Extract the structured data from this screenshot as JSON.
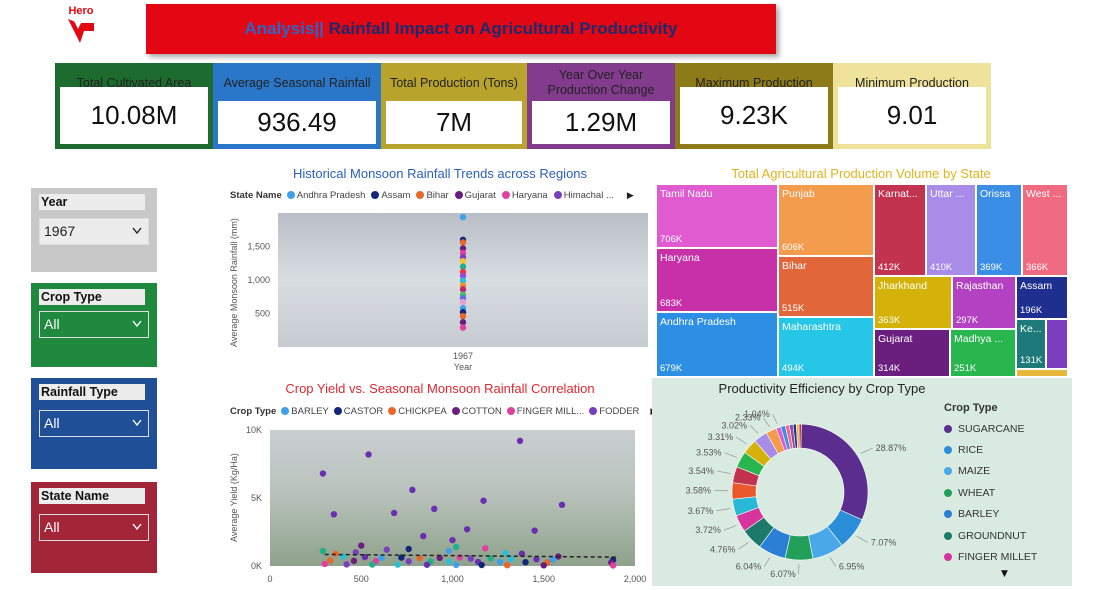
{
  "header": {
    "brand": "Hero",
    "title_prefix": "Analysis||",
    "title_main": " Rainfall Impact on Agricultural Productivity"
  },
  "kpis": [
    {
      "label": "Total Cultivated Area",
      "value": "10.08M",
      "color": "#1e6b2f"
    },
    {
      "label": "Average Seasonal Rainfall",
      "value": "936.49",
      "color": "#2a77c9"
    },
    {
      "label": "Total Production (Tons)",
      "value": "7M",
      "color": "#b8a32c"
    },
    {
      "label": "Year Over Year Production Change",
      "value": "1.29M",
      "color": "#833b8e"
    },
    {
      "label": "Maximum Production",
      "value": "9.23K",
      "color": "#8d7a18"
    },
    {
      "label": "Minimum Production",
      "value": "9.01",
      "color": "#efe39b"
    }
  ],
  "slicers": [
    {
      "label": "Year",
      "value": "1967",
      "color": "#c8c8c8"
    },
    {
      "label": "Crop Type",
      "value": "All",
      "color": "#1f8a3e"
    },
    {
      "label": "Rainfall Type",
      "value": "All",
      "color": "#1f4f96"
    },
    {
      "label": "State Name",
      "value": "All",
      "color": "#a32538"
    }
  ],
  "rainfall_chart": {
    "title": "Historical Monsoon Rainfall Trends across Regions",
    "legend_title": "State Name",
    "legend": [
      "Andhra Pradesh",
      "Assam",
      "Bihar",
      "Gujarat",
      "Haryana",
      "Himachal ..."
    ],
    "legend_colors": [
      "#3fa0e8",
      "#14267a",
      "#e8672a",
      "#6a1f7e",
      "#e0409e",
      "#7a3fbf"
    ],
    "ylabel": "Average Monsoon Rainfall (mm)",
    "xlabel": "Year",
    "yticks": [
      "1,500",
      "1,000",
      "500"
    ],
    "xtick": "1967"
  },
  "yield_chart": {
    "title": "Crop Yield vs. Seasonal Monsoon Rainfall Correlation",
    "legend_title": "Crop Type",
    "legend": [
      "BARLEY",
      "CASTOR",
      "CHICKPEA",
      "COTTON",
      "FINGER MILL...",
      "FODDER"
    ],
    "legend_colors": [
      "#3fa0e8",
      "#14267a",
      "#e8672a",
      "#6a1f7e",
      "#e0409e",
      "#7a3fbf"
    ],
    "ylabel": "Average Yield (Kg/Ha)",
    "yticks": [
      "10K",
      "5K",
      "0K"
    ],
    "xticks": [
      "0",
      "500",
      "1,000",
      "1,500",
      "2,000"
    ]
  },
  "treemap": {
    "title": "Total Agricultural Production Volume by State",
    "title_color": "#e0b41e"
  },
  "donut": {
    "title": "Productivity Efficiency by Crop Type",
    "legend_title": "Crop Type",
    "legend": [
      {
        "name": "SUGARCANE",
        "color": "#5b2d8e"
      },
      {
        "name": "RICE",
        "color": "#2a8fd8"
      },
      {
        "name": "MAIZE",
        "color": "#4aa8e8"
      },
      {
        "name": "WHEAT",
        "color": "#22a05a"
      },
      {
        "name": "BARLEY",
        "color": "#2a7fd4"
      },
      {
        "name": "GROUNDNUT",
        "color": "#1d7a6a"
      },
      {
        "name": "FINGER MILLET",
        "color": "#d8349e"
      }
    ]
  },
  "chart_data": [
    {
      "type": "scatter",
      "title": "Historical Monsoon Rainfall Trends across Regions",
      "xlabel": "Year",
      "ylabel": "Average Monsoon Rainfall (mm)",
      "x_category": "1967",
      "ylim": [
        0,
        2000
      ],
      "series_colors": [
        "#3fa0e8",
        "#14267a",
        "#e8672a",
        "#6a1f7e",
        "#e0409e",
        "#7a3fbf",
        "#f2c530",
        "#22b08a",
        "#e33a3a",
        "#9a4ad6",
        "#2abfd6",
        "#f08a2a",
        "#c0286e",
        "#44c05a",
        "#6a6ae0",
        "#e8a0c8"
      ],
      "values": [
        1940,
        1600,
        1560,
        1470,
        1400,
        1340,
        1280,
        1200,
        1120,
        1060,
        990,
        920,
        860,
        780,
        730,
        670,
        580,
        520,
        460,
        370,
        290
      ]
    },
    {
      "type": "scatter",
      "title": "Crop Yield vs. Seasonal Monsoon Rainfall Correlation",
      "ylabel": "Average Yield (Kg/Ha)",
      "xlim": [
        0,
        2000
      ],
      "ylim": [
        0,
        10000
      ],
      "points": [
        [
          290,
          6800
        ],
        [
          540,
          8200
        ],
        [
          1370,
          9200
        ],
        [
          780,
          5600
        ],
        [
          1170,
          4800
        ],
        [
          1600,
          4500
        ],
        [
          900,
          4200
        ],
        [
          350,
          3800
        ],
        [
          680,
          3900
        ],
        [
          1450,
          2600
        ],
        [
          1080,
          2700
        ],
        [
          840,
          2200
        ],
        [
          1000,
          1900
        ],
        [
          500,
          1500
        ],
        [
          1180,
          1300
        ],
        [
          640,
          1200
        ],
        [
          290,
          1100
        ],
        [
          400,
          700
        ],
        [
          520,
          650
        ],
        [
          610,
          600
        ],
        [
          720,
          620
        ],
        [
          820,
          580
        ],
        [
          930,
          600
        ],
        [
          1040,
          630
        ],
        [
          1100,
          540
        ],
        [
          1210,
          560
        ],
        [
          1320,
          520
        ],
        [
          1460,
          500
        ],
        [
          1550,
          480
        ],
        [
          1880,
          450
        ],
        [
          330,
          400
        ],
        [
          460,
          380
        ],
        [
          580,
          360
        ],
        [
          760,
          340
        ],
        [
          880,
          330
        ],
        [
          980,
          310
        ],
        [
          1140,
          300
        ],
        [
          1260,
          290
        ],
        [
          1400,
          280
        ],
        [
          1520,
          270
        ],
        [
          1870,
          260
        ],
        [
          300,
          150
        ],
        [
          420,
          120
        ],
        [
          560,
          110
        ],
        [
          700,
          100
        ],
        [
          860,
          90
        ],
        [
          1020,
          80
        ],
        [
          1160,
          70
        ],
        [
          1300,
          60
        ],
        [
          1500,
          50
        ],
        [
          1880,
          40
        ],
        [
          470,
          1000
        ],
        [
          1020,
          1400
        ],
        [
          1290,
          950
        ],
        [
          1380,
          900
        ],
        [
          980,
          1100
        ],
        [
          760,
          1250
        ],
        [
          360,
          900
        ],
        [
          1580,
          700
        ]
      ],
      "trendline": [
        [
          300,
          850
        ],
        [
          1900,
          650
        ]
      ]
    },
    {
      "type": "treemap",
      "title": "Total Agricultural Production Volume by State",
      "items": [
        {
          "name": "Tamil Nadu",
          "value": "706K",
          "color": "#e05ad0"
        },
        {
          "name": "Haryana",
          "value": "683K",
          "color": "#c830a8"
        },
        {
          "name": "Andhra Pradesh",
          "value": "679K",
          "color": "#2d8fe3"
        },
        {
          "name": "Punjab",
          "value": "606K",
          "color": "#f39c4e"
        },
        {
          "name": "Bihar",
          "value": "515K",
          "color": "#e1663a"
        },
        {
          "name": "Maharashtra",
          "value": "494K",
          "color": "#26c7e6"
        },
        {
          "name": "Karnat...",
          "value": "412K",
          "color": "#c2334f"
        },
        {
          "name": "Uttar ...",
          "value": "410K",
          "color": "#a98be8"
        },
        {
          "name": "Orissa",
          "value": "369K",
          "color": "#3a8ee6"
        },
        {
          "name": "West ...",
          "value": "366K",
          "color": "#f06a82"
        },
        {
          "name": "Jharkhand",
          "value": "363K",
          "color": "#d4b20a"
        },
        {
          "name": "Rajasthan",
          "value": "297K",
          "color": "#b342c2"
        },
        {
          "name": "Assam",
          "value": "196K",
          "color": "#1f2f8f"
        },
        {
          "name": "Gujarat",
          "value": "314K",
          "color": "#6a1f7e"
        },
        {
          "name": "Madhya ...",
          "value": "251K",
          "color": "#2ab64e"
        },
        {
          "name": "Ke...",
          "value": "131K",
          "color": "#1e7a7a"
        },
        {
          "name": "",
          "value": "",
          "color": "#7a3fbf"
        },
        {
          "name": "",
          "value": "",
          "color": "#e7b83a"
        }
      ]
    },
    {
      "type": "pie",
      "title": "Productivity Efficiency by Crop Type",
      "donut": true,
      "slices": [
        {
          "label": "28.87%",
          "value": 28.87,
          "color": "#5b2d8e"
        },
        {
          "label": "7.07%",
          "value": 7.07,
          "color": "#2a8fd8"
        },
        {
          "label": "6.95%",
          "value": 6.95,
          "color": "#4aa8e8"
        },
        {
          "label": "6.07%",
          "value": 6.07,
          "color": "#22a05a"
        },
        {
          "label": "6.04%",
          "value": 6.04,
          "color": "#2a7fd4"
        },
        {
          "label": "4.76%",
          "value": 4.76,
          "color": "#1d7a6a"
        },
        {
          "label": "3.72%",
          "value": 3.72,
          "color": "#d8349e"
        },
        {
          "label": "3.67%",
          "value": 3.67,
          "color": "#28b8d8"
        },
        {
          "label": "3.58%",
          "value": 3.58,
          "color": "#e8582a"
        },
        {
          "label": "3.54%",
          "value": 3.54,
          "color": "#c2334f"
        },
        {
          "label": "3.53%",
          "value": 3.53,
          "color": "#2ab64e"
        },
        {
          "label": "3.31%",
          "value": 3.31,
          "color": "#d4b20a"
        },
        {
          "label": "3.02%",
          "value": 3.02,
          "color": "#a98be8"
        },
        {
          "label": "2.33%",
          "value": 2.33,
          "color": "#f39c4e"
        },
        {
          "label": "1.04%",
          "value": 1.04,
          "color": "#e05ad0"
        },
        {
          "label": "",
          "value": 1.0,
          "color": "#3a8ee6"
        },
        {
          "label": "",
          "value": 0.9,
          "color": "#f06a82"
        },
        {
          "label": "",
          "value": 0.8,
          "color": "#8a4ab0"
        },
        {
          "label": "",
          "value": 0.7,
          "color": "#1f2f8f"
        },
        {
          "label": "",
          "value": 0.6,
          "color": "#e7b83a"
        },
        {
          "label": "",
          "value": 0.5,
          "color": "#c83030"
        }
      ]
    }
  ]
}
